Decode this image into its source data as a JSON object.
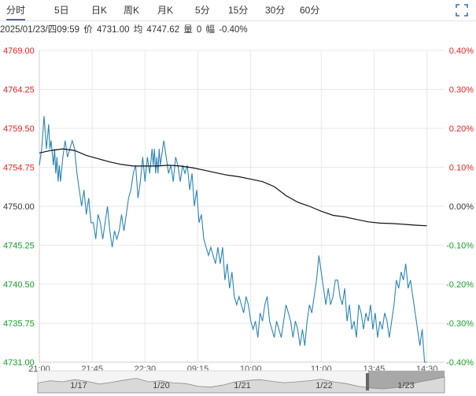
{
  "tabs": [
    {
      "label": "分时",
      "active": true
    },
    {
      "label": "5日"
    },
    {
      "label": "日K"
    },
    {
      "label": "周K"
    },
    {
      "label": "月K"
    },
    {
      "label": "5分"
    },
    {
      "label": "15分"
    },
    {
      "label": "30分"
    },
    {
      "label": "60分"
    }
  ],
  "fullscreen_icon": "fullscreen-icon",
  "info": {
    "datetime": "2025/01/23/四09:59",
    "price_label": "价",
    "price": "4731.00",
    "avg_label": "均",
    "avg": "4747.62",
    "vol_label": "量",
    "vol": "0",
    "change_label": "幅",
    "change": "-0.40%"
  },
  "colors": {
    "up": "#e52222",
    "down": "#13a12b",
    "neutral": "#333333",
    "price_line": "#2c84b7",
    "avg_line": "#111111",
    "grid": "#e8e8e8",
    "nav_fill": "#d9d9d9",
    "nav_line": "#8a8a8a",
    "nav_highlight": "#a8a8a8"
  },
  "chart_data": {
    "type": "line",
    "title": "",
    "xlabel": "",
    "ylabel": "",
    "ylim": [
      4731.0,
      4769.0
    ],
    "y_ticks": [
      "4769.00",
      "4764.25",
      "4759.50",
      "4754.75",
      "4750.00",
      "4745.25",
      "4740.50",
      "4735.75",
      "4731.00"
    ],
    "y_tick_values": [
      4769.0,
      4764.25,
      4759.5,
      4754.75,
      4750.0,
      4745.25,
      4740.5,
      4735.75,
      4731.0
    ],
    "pct_ticks": [
      "0.40%",
      "0.30%",
      "0.20%",
      "0.10%",
      "0.00%",
      "-0.10%",
      "-0.20%",
      "-0.30%",
      "-0.40%"
    ],
    "pct_tick_values": [
      0.4,
      0.3,
      0.2,
      0.1,
      0.0,
      -0.1,
      -0.2,
      -0.3,
      -0.4
    ],
    "x_ticks": [
      "21:00",
      "21:45",
      "22:30",
      "09:15",
      "10:00",
      "11:00",
      "13:45",
      "14:30"
    ],
    "x_tick_index": [
      0,
      45,
      90,
      135,
      180,
      240,
      285,
      330
    ],
    "x_count": 346,
    "series": [
      {
        "key": "price",
        "points": [
          [
            0,
            4755
          ],
          [
            2,
            4757
          ],
          [
            4,
            4761
          ],
          [
            5,
            4759
          ],
          [
            6,
            4757
          ],
          [
            8,
            4760
          ],
          [
            9,
            4757
          ],
          [
            10,
            4758
          ],
          [
            12,
            4755
          ],
          [
            13,
            4757
          ],
          [
            14,
            4754
          ],
          [
            15,
            4756
          ],
          [
            16,
            4753
          ],
          [
            17,
            4755
          ],
          [
            18,
            4753
          ],
          [
            20,
            4756
          ],
          [
            22,
            4758
          ],
          [
            24,
            4756
          ],
          [
            26,
            4757
          ],
          [
            28,
            4758
          ],
          [
            30,
            4757
          ],
          [
            32,
            4754
          ],
          [
            34,
            4752
          ],
          [
            36,
            4750
          ],
          [
            38,
            4752
          ],
          [
            40,
            4749
          ],
          [
            42,
            4751
          ],
          [
            44,
            4748
          ],
          [
            46,
            4748
          ],
          [
            48,
            4746
          ],
          [
            50,
            4749
          ],
          [
            52,
            4748
          ],
          [
            54,
            4746
          ],
          [
            56,
            4748
          ],
          [
            58,
            4750
          ],
          [
            60,
            4747
          ],
          [
            62,
            4745
          ],
          [
            64,
            4747
          ],
          [
            66,
            4746
          ],
          [
            68,
            4747
          ],
          [
            70,
            4749
          ],
          [
            72,
            4747
          ],
          [
            74,
            4749
          ],
          [
            76,
            4751
          ],
          [
            78,
            4752
          ],
          [
            80,
            4754
          ],
          [
            82,
            4755
          ],
          [
            84,
            4751
          ],
          [
            86,
            4753
          ],
          [
            88,
            4756
          ],
          [
            90,
            4753
          ],
          [
            92,
            4756
          ],
          [
            94,
            4754
          ],
          [
            96,
            4757
          ],
          [
            97,
            4755
          ],
          [
            98,
            4757
          ],
          [
            99,
            4754
          ],
          [
            100,
            4756
          ],
          [
            101,
            4754
          ],
          [
            102,
            4757
          ],
          [
            103,
            4755
          ],
          [
            104,
            4756
          ],
          [
            106,
            4758
          ],
          [
            108,
            4756
          ],
          [
            110,
            4754
          ],
          [
            112,
            4755
          ],
          [
            114,
            4753
          ],
          [
            116,
            4756
          ],
          [
            118,
            4755
          ],
          [
            120,
            4753
          ],
          [
            122,
            4755
          ],
          [
            124,
            4754
          ],
          [
            126,
            4755
          ],
          [
            128,
            4752
          ],
          [
            130,
            4754
          ],
          [
            132,
            4750
          ],
          [
            134,
            4752
          ],
          [
            136,
            4748
          ],
          [
            138,
            4749
          ],
          [
            140,
            4746
          ],
          [
            142,
            4745
          ],
          [
            144,
            4744
          ],
          [
            146,
            4745
          ],
          [
            148,
            4744
          ],
          [
            150,
            4743
          ],
          [
            152,
            4745
          ],
          [
            154,
            4743
          ],
          [
            156,
            4745
          ],
          [
            158,
            4741
          ],
          [
            160,
            4743
          ],
          [
            162,
            4740
          ],
          [
            164,
            4742
          ],
          [
            166,
            4739
          ],
          [
            168,
            4738
          ],
          [
            170,
            4739
          ],
          [
            172,
            4738
          ],
          [
            174,
            4737
          ],
          [
            176,
            4739
          ],
          [
            178,
            4738
          ],
          [
            180,
            4736
          ],
          [
            182,
            4735
          ],
          [
            184,
            4736
          ],
          [
            186,
            4734
          ],
          [
            188,
            4737
          ],
          [
            190,
            4736
          ],
          [
            192,
            4738
          ],
          [
            194,
            4739
          ],
          [
            196,
            4736
          ],
          [
            198,
            4735
          ],
          [
            200,
            4734
          ],
          [
            202,
            4736
          ],
          [
            204,
            4735
          ],
          [
            206,
            4734
          ],
          [
            208,
            4736
          ],
          [
            210,
            4738
          ],
          [
            212,
            4737
          ],
          [
            214,
            4736
          ],
          [
            216,
            4734
          ],
          [
            218,
            4736
          ],
          [
            220,
            4735
          ],
          [
            222,
            4733
          ],
          [
            224,
            4735
          ],
          [
            226,
            4733
          ],
          [
            228,
            4736
          ],
          [
            230,
            4738
          ],
          [
            232,
            4737
          ],
          [
            234,
            4739
          ],
          [
            236,
            4741
          ],
          [
            238,
            4744
          ],
          [
            240,
            4742
          ],
          [
            242,
            4740
          ],
          [
            244,
            4738
          ],
          [
            246,
            4740
          ],
          [
            248,
            4738
          ],
          [
            250,
            4739
          ],
          [
            252,
            4741
          ],
          [
            254,
            4741
          ],
          [
            256,
            4739
          ],
          [
            258,
            4738
          ],
          [
            260,
            4740
          ],
          [
            262,
            4736
          ],
          [
            264,
            4738
          ],
          [
            266,
            4735
          ],
          [
            268,
            4736
          ],
          [
            270,
            4734
          ],
          [
            272,
            4738
          ],
          [
            274,
            4737
          ],
          [
            276,
            4735
          ],
          [
            278,
            4737
          ],
          [
            280,
            4736
          ],
          [
            282,
            4738
          ],
          [
            284,
            4735
          ],
          [
            286,
            4737
          ],
          [
            288,
            4734
          ],
          [
            290,
            4736
          ],
          [
            292,
            4735
          ],
          [
            294,
            4737
          ],
          [
            296,
            4736
          ],
          [
            298,
            4734
          ],
          [
            300,
            4736
          ],
          [
            302,
            4738
          ],
          [
            304,
            4741
          ],
          [
            306,
            4740
          ],
          [
            308,
            4742
          ],
          [
            310,
            4741
          ],
          [
            312,
            4743
          ],
          [
            314,
            4740
          ],
          [
            316,
            4741
          ],
          [
            318,
            4739
          ],
          [
            320,
            4737
          ],
          [
            322,
            4735
          ],
          [
            324,
            4733
          ],
          [
            326,
            4735
          ],
          [
            328,
            4731
          ],
          [
            330,
            4731
          ]
        ]
      },
      {
        "key": "average",
        "points": [
          [
            0,
            4756.5
          ],
          [
            10,
            4756.8
          ],
          [
            20,
            4757.0
          ],
          [
            30,
            4756.8
          ],
          [
            40,
            4756.2
          ],
          [
            50,
            4755.8
          ],
          [
            60,
            4755.4
          ],
          [
            70,
            4755.1
          ],
          [
            80,
            4754.9
          ],
          [
            90,
            4754.9
          ],
          [
            100,
            4754.9
          ],
          [
            110,
            4755.0
          ],
          [
            120,
            4754.9
          ],
          [
            130,
            4754.7
          ],
          [
            140,
            4754.4
          ],
          [
            150,
            4754.1
          ],
          [
            160,
            4753.8
          ],
          [
            170,
            4753.6
          ],
          [
            180,
            4753.3
          ],
          [
            190,
            4753.0
          ],
          [
            200,
            4752.4
          ],
          [
            210,
            4751.3
          ],
          [
            220,
            4750.5
          ],
          [
            230,
            4750.0
          ],
          [
            240,
            4749.4
          ],
          [
            250,
            4748.9
          ],
          [
            260,
            4748.7
          ],
          [
            270,
            4748.4
          ],
          [
            280,
            4748.1
          ],
          [
            290,
            4747.95
          ],
          [
            300,
            4747.9
          ],
          [
            310,
            4747.8
          ],
          [
            320,
            4747.7
          ],
          [
            330,
            4747.62
          ]
        ]
      }
    ]
  },
  "navigator": {
    "labels": [
      "1/17",
      "1/20",
      "1/21",
      "1/22",
      "1/23"
    ],
    "values": [
      0.45,
      0.55,
      0.5,
      0.6,
      0.52,
      0.4,
      0.48,
      0.58,
      0.66,
      0.5,
      0.55,
      0.45,
      0.42,
      0.3,
      0.26,
      0.35,
      0.5,
      0.56,
      0.6,
      0.52,
      0.46,
      0.5,
      0.55,
      0.62,
      0.5,
      0.42,
      0.3,
      0.22,
      0.18,
      0.24,
      0.36,
      0.5,
      0.6,
      0.72
    ]
  }
}
